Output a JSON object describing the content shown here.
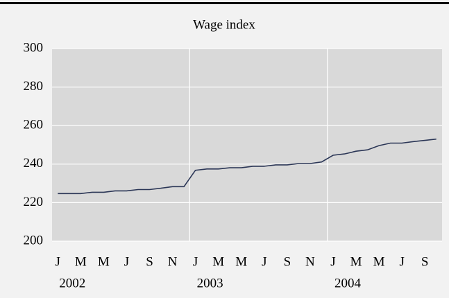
{
  "chart_data": {
    "type": "line",
    "title": "Wage index",
    "categories": [
      "J",
      null,
      "M",
      null,
      "M",
      null,
      "J",
      null,
      "S",
      null,
      "N",
      null,
      "J",
      null,
      "M",
      null,
      "M",
      null,
      "J",
      null,
      "S",
      null,
      "N",
      null,
      "J",
      null,
      "M",
      null,
      "M",
      null,
      "J",
      null,
      "S",
      null
    ],
    "x_groups": [
      "2002",
      "2003",
      "2004"
    ],
    "values": [
      224.7,
      224.7,
      224.7,
      225.4,
      225.4,
      226.1,
      226.1,
      226.8,
      226.8,
      227.5,
      228.3,
      228.3,
      236.8,
      237.5,
      237.5,
      238.1,
      238.1,
      238.9,
      238.9,
      239.6,
      239.6,
      240.3,
      240.3,
      241.1,
      244.6,
      245.3,
      246.7,
      247.4,
      249.6,
      250.9,
      250.9,
      251.7,
      252.3,
      253.0
    ],
    "color": "#2b3656",
    "ylim": [
      200,
      300
    ],
    "yticks": [
      200,
      220,
      240,
      260,
      280,
      300
    ],
    "grid": true
  }
}
